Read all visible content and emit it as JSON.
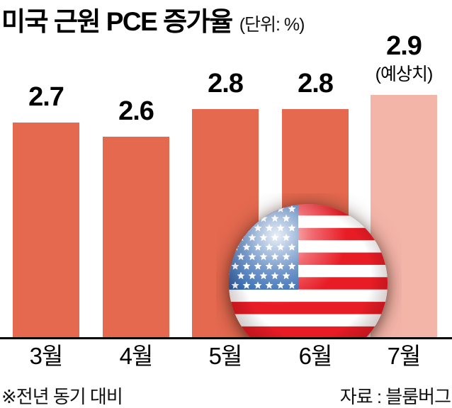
{
  "header": {
    "title": "미국 근원 PCE 증가율",
    "unit": "(단위: %)"
  },
  "chart_data": {
    "type": "bar",
    "title": "미국 근원 PCE 증가율",
    "unit_label": "(단위: %)",
    "categories": [
      "3월",
      "4월",
      "5월",
      "6월",
      "7월"
    ],
    "values": [
      2.7,
      2.6,
      2.8,
      2.8,
      2.9
    ],
    "value_labels": [
      "2.7",
      "2.6",
      "2.8",
      "2.8",
      "2.9"
    ],
    "forecast": {
      "index": 4,
      "label": "(예상치)"
    },
    "bar_color": "#e4694f",
    "forecast_bar_color": "#f4b5a9",
    "grid": false,
    "legend": "none",
    "baseline_axis_color": "#000000"
  },
  "footer": {
    "note": "※전년 동기 대비",
    "source": "자료 : 블룸버그"
  },
  "decor": {
    "flag_icon": "us-flag-ball-icon",
    "flag_colors": {
      "red": "#e81c25",
      "blue": "#2b63ae",
      "white": "#ffffff"
    }
  }
}
